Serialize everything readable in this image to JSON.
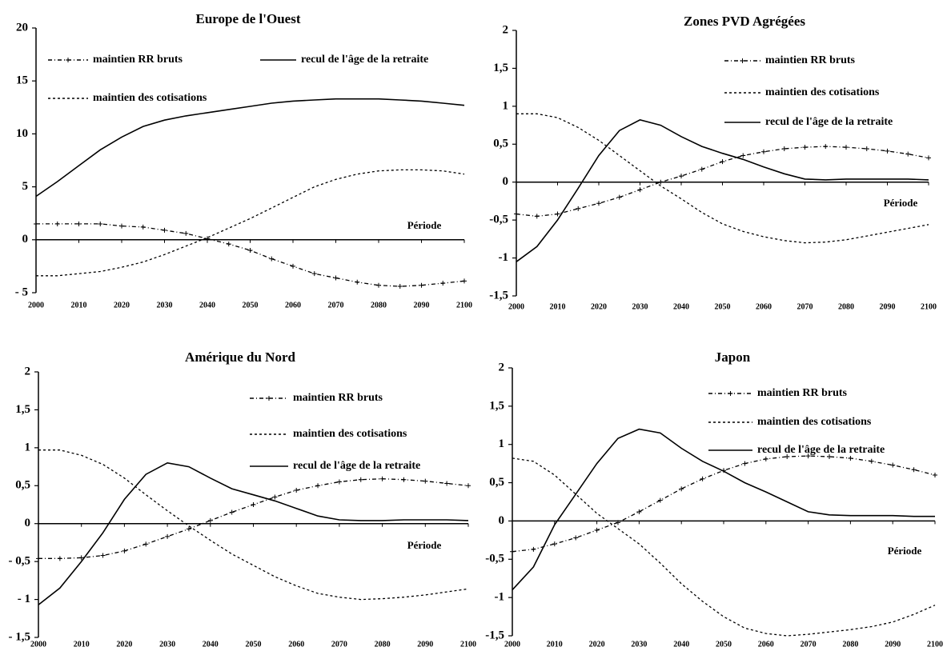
{
  "chart_data": [
    {
      "type": "line",
      "title": "Europe de l'Ouest",
      "annotation": "Période",
      "x": [
        2000,
        2005,
        2010,
        2015,
        2020,
        2025,
        2030,
        2035,
        2040,
        2045,
        2050,
        2055,
        2060,
        2065,
        2070,
        2075,
        2080,
        2085,
        2090,
        2095,
        2100
      ],
      "xlim": [
        2000,
        2100
      ],
      "xticks": [
        2000,
        2010,
        2020,
        2030,
        2040,
        2050,
        2060,
        2070,
        2080,
        2090,
        2100
      ],
      "ylim": [
        -5,
        20
      ],
      "yticks": [
        {
          "value": -5,
          "label": "- 5"
        },
        0,
        5,
        10,
        15,
        20
      ],
      "series": [
        {
          "name": "maintien RR bruts",
          "color": "#000000",
          "dash": "dashdot",
          "marker": "+",
          "values": [
            1.5,
            1.5,
            1.5,
            1.5,
            1.3,
            1.2,
            0.9,
            0.6,
            0.1,
            -0.4,
            -1,
            -1.8,
            -2.5,
            -3.2,
            -3.6,
            -4,
            -4.3,
            -4.4,
            -4.3,
            -4.1,
            -3.9
          ]
        },
        {
          "name": "recul de l'âge de la retraite",
          "color": "#000000",
          "dash": "solid",
          "values": [
            4.1,
            5.5,
            7,
            8.5,
            9.7,
            10.7,
            11.3,
            11.7,
            12,
            12.3,
            12.6,
            12.9,
            13.1,
            13.2,
            13.3,
            13.3,
            13.3,
            13.2,
            13.1,
            12.9,
            12.7
          ]
        },
        {
          "name": "maintien des cotisations",
          "color": "#000000",
          "dash": "dotted",
          "values": [
            -3.4,
            -3.4,
            -3.2,
            -3,
            -2.6,
            -2.1,
            -1.4,
            -0.6,
            0.2,
            1.1,
            2,
            3,
            4,
            5,
            5.7,
            6.2,
            6.5,
            6.6,
            6.6,
            6.5,
            6.2
          ]
        }
      ]
    },
    {
      "type": "line",
      "title": "Zones PVD Agrégées",
      "annotation": "Période",
      "x": [
        2000,
        2005,
        2010,
        2015,
        2020,
        2025,
        2030,
        2035,
        2040,
        2045,
        2050,
        2055,
        2060,
        2065,
        2070,
        2075,
        2080,
        2085,
        2090,
        2095,
        2100
      ],
      "xlim": [
        2000,
        2100
      ],
      "xticks": [
        2000,
        2010,
        2020,
        2030,
        2040,
        2050,
        2060,
        2070,
        2080,
        2090,
        2100
      ],
      "ylim": [
        -1.5,
        2
      ],
      "yticks": [
        {
          "value": -1.5,
          "label": "-1,5"
        },
        -1,
        {
          "value": -0.5,
          "label": "-0,5"
        },
        0,
        {
          "value": 0.5,
          "label": "0,5"
        },
        1,
        {
          "value": 1.5,
          "label": "1,5"
        },
        2
      ],
      "series": [
        {
          "name": "maintien RR bruts",
          "color": "#000000",
          "dash": "dashdot",
          "marker": "+",
          "values": [
            -0.42,
            -0.45,
            -0.42,
            -0.35,
            -0.28,
            -0.2,
            -0.1,
            0,
            0.08,
            0.17,
            0.27,
            0.35,
            0.4,
            0.44,
            0.46,
            0.47,
            0.46,
            0.44,
            0.41,
            0.37,
            0.32
          ]
        },
        {
          "name": "maintien des cotisations",
          "color": "#000000",
          "dash": "dotted",
          "values": [
            0.9,
            0.9,
            0.85,
            0.72,
            0.55,
            0.35,
            0.15,
            -0.05,
            -0.22,
            -0.4,
            -0.55,
            -0.65,
            -0.72,
            -0.77,
            -0.8,
            -0.79,
            -0.76,
            -0.71,
            -0.66,
            -0.61,
            -0.56
          ]
        },
        {
          "name": "recul de l'âge de la retraite",
          "color": "#000000",
          "dash": "solid",
          "values": [
            -1.05,
            -0.85,
            -0.5,
            -0.08,
            0.35,
            0.68,
            0.82,
            0.75,
            0.6,
            0.47,
            0.38,
            0.3,
            0.2,
            0.11,
            0.04,
            0.03,
            0.04,
            0.04,
            0.04,
            0.04,
            0.03
          ]
        }
      ]
    },
    {
      "type": "line",
      "title": "Amérique du Nord",
      "annotation": "Période",
      "x": [
        2000,
        2005,
        2010,
        2015,
        2020,
        2025,
        2030,
        2035,
        2040,
        2045,
        2050,
        2055,
        2060,
        2065,
        2070,
        2075,
        2080,
        2085,
        2090,
        2095,
        2100
      ],
      "xlim": [
        2000,
        2100
      ],
      "xticks": [
        2000,
        2010,
        2020,
        2030,
        2040,
        2050,
        2060,
        2070,
        2080,
        2090,
        2100
      ],
      "ylim": [
        -1.5,
        2
      ],
      "yticks": [
        {
          "value": -1.5,
          "label": "- 1,5"
        },
        {
          "value": -1,
          "label": "- 1"
        },
        {
          "value": -0.5,
          "label": "- 0,5"
        },
        0,
        {
          "value": 0.5,
          "label": "0,5"
        },
        1,
        {
          "value": 1.5,
          "label": "1,5"
        },
        2
      ],
      "series": [
        {
          "name": "maintien RR bruts",
          "color": "#000000",
          "dash": "dashdot",
          "marker": "+",
          "values": [
            -0.46,
            -0.46,
            -0.45,
            -0.42,
            -0.36,
            -0.27,
            -0.17,
            -0.07,
            0.04,
            0.15,
            0.25,
            0.35,
            0.44,
            0.5,
            0.55,
            0.58,
            0.59,
            0.58,
            0.56,
            0.53,
            0.5
          ]
        },
        {
          "name": "maintien des cotisations",
          "color": "#000000",
          "dash": "dotted",
          "values": [
            0.97,
            0.97,
            0.9,
            0.78,
            0.6,
            0.38,
            0.17,
            -0.03,
            -0.22,
            -0.4,
            -0.55,
            -0.7,
            -0.82,
            -0.92,
            -0.97,
            -1,
            -0.99,
            -0.97,
            -0.94,
            -0.9,
            -0.86
          ]
        },
        {
          "name": "recul de l'âge de la retraite",
          "color": "#000000",
          "dash": "solid",
          "values": [
            -1.07,
            -0.85,
            -0.5,
            -0.12,
            0.32,
            0.65,
            0.8,
            0.75,
            0.6,
            0.46,
            0.38,
            0.3,
            0.2,
            0.1,
            0.05,
            0.04,
            0.04,
            0.05,
            0.05,
            0.05,
            0.04
          ]
        }
      ]
    },
    {
      "type": "line",
      "title": "Japon",
      "annotation": "Période",
      "x": [
        2000,
        2005,
        2010,
        2015,
        2020,
        2025,
        2030,
        2035,
        2040,
        2045,
        2050,
        2055,
        2060,
        2065,
        2070,
        2075,
        2080,
        2085,
        2090,
        2095,
        2100
      ],
      "xlim": [
        2000,
        2100
      ],
      "xticks": [
        2000,
        2010,
        2020,
        2030,
        2040,
        2050,
        2060,
        2070,
        2080,
        2090,
        2100
      ],
      "ylim": [
        -1.5,
        2
      ],
      "yticks": [
        {
          "value": -1.5,
          "label": "-1,5"
        },
        -1,
        {
          "value": -0.5,
          "label": "-0,5"
        },
        0,
        {
          "value": 0.5,
          "label": "0,5"
        },
        1,
        {
          "value": 1.5,
          "label": "1,5"
        },
        2
      ],
      "series": [
        {
          "name": "maintien RR bruts",
          "color": "#000000",
          "dash": "dashdot",
          "marker": "+",
          "values": [
            -0.4,
            -0.37,
            -0.3,
            -0.22,
            -0.12,
            -0.02,
            0.12,
            0.27,
            0.42,
            0.55,
            0.66,
            0.75,
            0.81,
            0.84,
            0.85,
            0.84,
            0.82,
            0.78,
            0.73,
            0.67,
            0.6
          ]
        },
        {
          "name": "maintien des cotisations",
          "color": "#000000",
          "dash": "dotted",
          "values": [
            0.82,
            0.78,
            0.6,
            0.35,
            0.1,
            -0.1,
            -0.3,
            -0.55,
            -0.82,
            -1.05,
            -1.25,
            -1.4,
            -1.47,
            -1.5,
            -1.48,
            -1.45,
            -1.42,
            -1.38,
            -1.32,
            -1.22,
            -1.1
          ]
        },
        {
          "name": "recul de l'âge de la retraite",
          "color": "#000000",
          "dash": "solid",
          "values": [
            -0.9,
            -0.6,
            -0.05,
            0.35,
            0.75,
            1.08,
            1.2,
            1.15,
            0.95,
            0.78,
            0.65,
            0.5,
            0.38,
            0.25,
            0.12,
            0.08,
            0.07,
            0.07,
            0.07,
            0.06,
            0.06
          ]
        }
      ]
    }
  ]
}
